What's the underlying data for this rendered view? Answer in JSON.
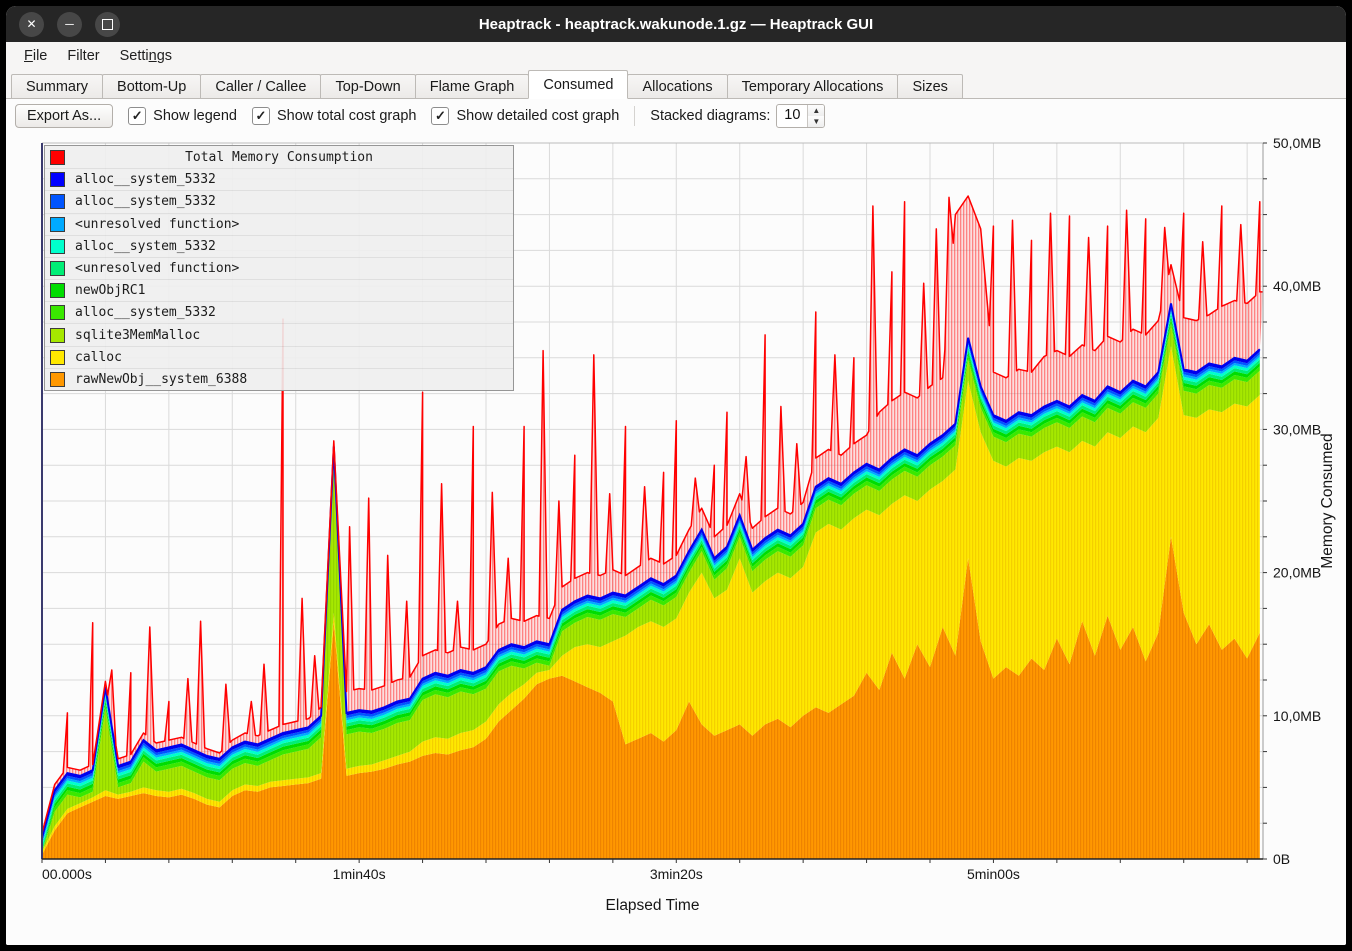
{
  "window": {
    "title": "Heaptrack - heaptrack.wakunode.1.gz — Heaptrack GUI",
    "icons": {
      "close": "✕",
      "minimize": "─",
      "maximize": ""
    }
  },
  "menubar": {
    "items": [
      {
        "pre": "",
        "key": "F",
        "post": "ile"
      },
      {
        "pre": "Filter",
        "key": "",
        "post": ""
      },
      {
        "pre": "Setti",
        "key": "n",
        "post": "gs"
      }
    ]
  },
  "tabs": {
    "items": [
      {
        "label": "Summary",
        "active": false
      },
      {
        "label": "Bottom-Up",
        "active": false
      },
      {
        "label": "Caller / Callee",
        "active": false
      },
      {
        "label": "Top-Down",
        "active": false
      },
      {
        "label": "Flame Graph",
        "active": false
      },
      {
        "label": "Consumed",
        "active": true
      },
      {
        "label": "Allocations",
        "active": false
      },
      {
        "label": "Temporary Allocations",
        "active": false
      },
      {
        "label": "Sizes",
        "active": false
      }
    ]
  },
  "toolbar": {
    "export_label": "Export As...",
    "check_glyph": "✓",
    "checkboxes": [
      {
        "label": "Show legend",
        "checked": true
      },
      {
        "label": "Show total cost graph",
        "checked": true
      },
      {
        "label": "Show detailed cost graph",
        "checked": true
      }
    ],
    "spinner": {
      "label": "Stacked diagrams:",
      "value": "10",
      "up": "▲",
      "down": "▼"
    }
  },
  "legend": {
    "title": {
      "label": "Total Memory Consumption",
      "color": "#ff0000"
    },
    "items": [
      {
        "label": "alloc__system_5332",
        "color": "#0000ff"
      },
      {
        "label": "alloc__system_5332",
        "color": "#0055ff"
      },
      {
        "label": "<unresolved function>",
        "color": "#00aaff"
      },
      {
        "label": "alloc__system_5332",
        "color": "#00ffcc"
      },
      {
        "label": "<unresolved function>",
        "color": "#00ee76"
      },
      {
        "label": "newObjRC1",
        "color": "#00dd00"
      },
      {
        "label": "alloc__system_5332",
        "color": "#3ae800"
      },
      {
        "label": "sqlite3MemMalloc",
        "color": "#a6e800"
      },
      {
        "label": "calloc",
        "color": "#ffe800"
      },
      {
        "label": "rawNewObj__system_6388",
        "color": "#ff9800"
      }
    ]
  },
  "chart_data": {
    "type": "area",
    "title": "Total Memory Consumption",
    "xlabel": "Elapsed Time",
    "ylabel": "Memory Consumed",
    "xlim": [
      0,
      385
    ],
    "ylim": [
      0,
      50
    ],
    "grid": {
      "x_step_seconds": 20,
      "y_step_mb": 2.5
    },
    "x_ticks": [
      {
        "t": 0,
        "label": "00.000s",
        "anchor": "start"
      },
      {
        "t": 100,
        "label": "1min40s",
        "anchor": "middle"
      },
      {
        "t": 200,
        "label": "3min20s",
        "anchor": "middle"
      },
      {
        "t": 300,
        "label": "5min00s",
        "anchor": "middle"
      }
    ],
    "y_tick_labels": [
      "0B",
      "10,0MB",
      "20,0MB",
      "30,0MB",
      "40,0MB",
      "50,0MB"
    ],
    "t": [
      0,
      4,
      8,
      12,
      16,
      20,
      24,
      28,
      32,
      36,
      40,
      44,
      48,
      52,
      56,
      60,
      64,
      68,
      72,
      76,
      80,
      84,
      88,
      92,
      96,
      100,
      104,
      108,
      112,
      116,
      120,
      124,
      128,
      132,
      136,
      140,
      144,
      148,
      152,
      156,
      160,
      164,
      168,
      172,
      176,
      180,
      184,
      188,
      192,
      196,
      200,
      204,
      208,
      212,
      216,
      220,
      224,
      228,
      232,
      236,
      240,
      244,
      248,
      252,
      256,
      260,
      264,
      268,
      272,
      276,
      280,
      284,
      288,
      292,
      296,
      300,
      304,
      308,
      312,
      316,
      320,
      324,
      328,
      332,
      336,
      340,
      344,
      348,
      352,
      356,
      360,
      364,
      368,
      372,
      376,
      380,
      384
    ],
    "series_mb": {
      "rawNewObj__system_6388_top": [
        0.3,
        2.0,
        3.2,
        3.6,
        4.0,
        4.4,
        4.2,
        4.4,
        4.6,
        4.4,
        4.3,
        4.5,
        4.2,
        3.8,
        3.6,
        4.4,
        4.8,
        4.7,
        5.0,
        5.1,
        5.2,
        5.3,
        5.6,
        16.5,
        5.8,
        6.0,
        6.1,
        6.3,
        6.6,
        6.8,
        7.2,
        7.4,
        7.3,
        7.6,
        7.8,
        8.4,
        9.6,
        10.4,
        11.2,
        12.2,
        12.6,
        12.8,
        12.4,
        12.0,
        11.6,
        11.0,
        8.0,
        8.4,
        8.8,
        8.2,
        9.0,
        11.0,
        9.4,
        8.6,
        9.0,
        9.4,
        8.6,
        9.4,
        9.8,
        9.2,
        10.0,
        10.6,
        10.2,
        10.8,
        11.4,
        13.0,
        11.8,
        14.4,
        12.6,
        15.0,
        13.4,
        16.2,
        14.2,
        21.0,
        15.2,
        12.6,
        13.4,
        12.8,
        14.0,
        13.2,
        15.4,
        13.6,
        16.6,
        14.2,
        17.0,
        14.6,
        16.2,
        13.8,
        15.8,
        22.5,
        17.2,
        15.0,
        16.4,
        14.6,
        15.4,
        14.0,
        15.8
      ],
      "calloc_top": [
        0.5,
        2.3,
        3.5,
        3.9,
        4.3,
        4.8,
        4.5,
        4.7,
        5.0,
        4.8,
        4.7,
        4.9,
        4.6,
        4.2,
        4.0,
        4.8,
        5.2,
        5.1,
        5.4,
        5.5,
        5.6,
        5.7,
        6.0,
        17.2,
        6.3,
        6.5,
        6.6,
        6.9,
        7.2,
        7.5,
        8.2,
        8.5,
        8.4,
        8.8,
        9.0,
        9.6,
        10.8,
        11.6,
        12.2,
        13.0,
        13.2,
        14.2,
        14.8,
        15.0,
        14.8,
        15.2,
        15.6,
        16.2,
        16.6,
        16.2,
        16.8,
        18.6,
        20.0,
        18.2,
        18.8,
        21.0,
        18.6,
        19.4,
        20.0,
        19.6,
        20.4,
        22.8,
        23.4,
        23.0,
        23.8,
        24.4,
        24.0,
        24.8,
        25.4,
        25.0,
        25.8,
        26.4,
        27.2,
        33.4,
        29.8,
        27.8,
        27.4,
        28.0,
        27.8,
        28.4,
        28.8,
        28.4,
        29.2,
        28.8,
        29.8,
        29.4,
        30.2,
        29.8,
        30.8,
        35.8,
        31.0,
        30.8,
        31.4,
        31.2,
        31.8,
        31.6,
        32.4
      ],
      "stack_top": [
        1.5,
        4.8,
        6.0,
        5.8,
        6.2,
        12.0,
        6.5,
        6.8,
        8.3,
        7.6,
        7.8,
        8.0,
        7.6,
        7.2,
        7.0,
        7.8,
        8.2,
        8.0,
        8.4,
        8.8,
        9.0,
        9.2,
        10.0,
        28.8,
        10.2,
        10.4,
        10.3,
        10.6,
        11.0,
        11.2,
        12.6,
        13.0,
        12.8,
        13.2,
        13.0,
        13.4,
        14.6,
        15.0,
        14.8,
        15.2,
        15.0,
        17.4,
        18.0,
        18.4,
        18.2,
        18.6,
        18.4,
        19.0,
        19.6,
        19.2,
        19.8,
        21.5,
        23.0,
        21.0,
        21.8,
        24.0,
        21.6,
        22.4,
        23.0,
        22.6,
        23.4,
        26.0,
        26.6,
        26.2,
        27.0,
        27.6,
        27.2,
        28.0,
        28.6,
        28.2,
        29.0,
        29.6,
        30.4,
        36.4,
        33.0,
        31.0,
        30.6,
        31.2,
        31.0,
        31.6,
        32.0,
        31.6,
        32.4,
        32.0,
        33.0,
        32.6,
        33.4,
        33.0,
        34.0,
        38.8,
        34.2,
        34.0,
        34.6,
        34.4,
        35.0,
        34.8,
        35.6
      ],
      "total_red_base": [
        1.8,
        5.2,
        6.4,
        6.2,
        6.6,
        12.4,
        7.0,
        7.3,
        8.8,
        8.1,
        8.3,
        8.5,
        8.1,
        7.7,
        7.4,
        8.3,
        8.8,
        8.6,
        9.0,
        9.4,
        9.6,
        9.8,
        10.6,
        29.2,
        11.7,
        11.9,
        11.8,
        12.1,
        12.5,
        12.7,
        14.2,
        14.6,
        14.4,
        14.8,
        14.6,
        15.0,
        16.4,
        16.8,
        16.6,
        17.0,
        16.8,
        19.0,
        19.6,
        20.0,
        19.8,
        20.2,
        19.8,
        20.4,
        21.0,
        20.6,
        21.2,
        23.0,
        24.5,
        22.5,
        23.3,
        25.5,
        23.1,
        23.9,
        24.5,
        24.1,
        24.9,
        28.0,
        28.6,
        28.2,
        29.0,
        29.6,
        31.2,
        32.0,
        32.6,
        32.2,
        33.0,
        33.6,
        45.0,
        46.3,
        44.0,
        34.0,
        33.6,
        34.2,
        34.0,
        35.1,
        35.5,
        35.1,
        35.9,
        35.5,
        36.5,
        36.1,
        37.0,
        36.6,
        37.6,
        41.5,
        37.8,
        37.6,
        38.0,
        38.6,
        39.0,
        38.8,
        39.6
      ]
    },
    "red_spikes": [
      [
        8,
        10.2
      ],
      [
        16,
        16.5
      ],
      [
        22,
        13.2
      ],
      [
        28,
        13.0
      ],
      [
        34,
        16.2
      ],
      [
        40,
        11.0
      ],
      [
        46,
        12.6
      ],
      [
        50,
        16.6
      ],
      [
        58,
        12.2
      ],
      [
        66,
        11.0
      ],
      [
        70,
        13.6
      ],
      [
        76,
        37.7
      ],
      [
        82,
        18.2
      ],
      [
        86,
        14.2
      ],
      [
        97,
        23.2
      ],
      [
        103,
        25.2
      ],
      [
        109,
        21.2
      ],
      [
        115,
        18.0
      ],
      [
        120,
        32.6
      ],
      [
        126,
        26.2
      ],
      [
        131,
        18.0
      ],
      [
        136,
        30.2
      ],
      [
        142,
        25.6
      ],
      [
        147,
        21.0
      ],
      [
        152,
        30.2
      ],
      [
        158,
        35.5
      ],
      [
        163,
        25.0
      ],
      [
        168,
        28.2
      ],
      [
        174,
        35.2
      ],
      [
        179,
        25.5
      ],
      [
        184,
        30.2
      ],
      [
        190,
        26.0
      ],
      [
        196,
        27.0
      ],
      [
        200,
        30.6
      ],
      [
        206,
        26.6
      ],
      [
        212,
        27.5
      ],
      [
        216,
        31.2
      ],
      [
        222,
        28.1
      ],
      [
        228,
        36.6
      ],
      [
        233,
        31.6
      ],
      [
        238,
        29.0
      ],
      [
        244,
        38.2
      ],
      [
        250,
        35.2
      ],
      [
        256,
        35.0
      ],
      [
        262,
        45.6
      ],
      [
        268,
        41.0
      ],
      [
        272,
        45.9
      ],
      [
        278,
        40.2
      ],
      [
        282,
        44.0
      ],
      [
        286,
        46.2
      ],
      [
        300,
        44.2
      ],
      [
        306,
        44.6
      ],
      [
        312,
        43.2
      ],
      [
        318,
        45.1
      ],
      [
        324,
        44.9
      ],
      [
        330,
        43.4
      ],
      [
        336,
        44.2
      ],
      [
        342,
        45.3
      ],
      [
        348,
        44.7
      ],
      [
        354,
        44.1
      ],
      [
        360,
        45.1
      ],
      [
        366,
        43.1
      ],
      [
        372,
        45.6
      ],
      [
        378,
        44.3
      ],
      [
        384,
        45.9
      ]
    ],
    "thin_bands_below_stack_top": [
      {
        "name": "alloc__system_5332",
        "color": "#0000ee",
        "from": 0.0,
        "to": 0.18
      },
      {
        "name": "alloc__system_5332",
        "color": "#0055ff",
        "from": 0.18,
        "to": 0.36
      },
      {
        "name": "<unresolved function>",
        "color": "#00aaff",
        "from": 0.36,
        "to": 0.52
      },
      {
        "name": "alloc__system_5332",
        "color": "#00ffcc",
        "from": 0.52,
        "to": 0.72
      },
      {
        "name": "<unresolved function>",
        "color": "#00ee76",
        "from": 0.72,
        "to": 0.95
      },
      {
        "name": "newObjRC1",
        "color": "#00dd00",
        "from": 0.95,
        "to": 1.2
      },
      {
        "name": "alloc__system_5332",
        "color": "#3ae800",
        "from": 1.2,
        "to": 1.5
      }
    ],
    "colors": {
      "total_line": "#ff0000",
      "stack_top_line": "#0000ee",
      "sqlite3MemMalloc": "#a6e800",
      "calloc": "#ffe800",
      "rawNewObj__system_6388": "#ff9800"
    }
  }
}
